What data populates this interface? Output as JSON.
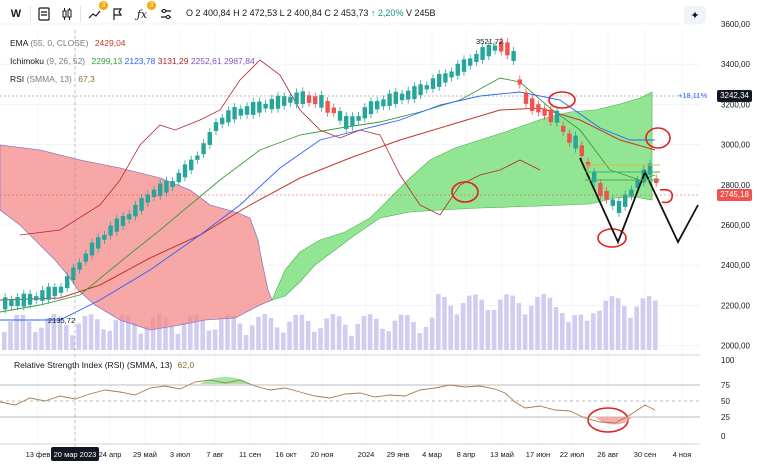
{
  "toolbar": {
    "symbol_label": "W",
    "alerts_badge": "3",
    "indicators_badge": "3"
  },
  "ohlc": {
    "open": "O 2 400,84",
    "high": "H 2 472,53",
    "low": "L 2 400,84",
    "close": "C 2 453,73",
    "change": "↑ 2,20%",
    "volume": "V 245B"
  },
  "indicators": [
    {
      "name": "EMA",
      "params": "(55, 0, CLOSE)",
      "values": [
        "2429,04"
      ],
      "colors": [
        "#c0392b"
      ]
    },
    {
      "name": "Ichimoku",
      "params": "(9, 26, 52)",
      "values": [
        "2299,13",
        "2123,78",
        "3131,29",
        "2252,61",
        "2987,84"
      ],
      "colors": [
        "#3a9b3a",
        "#2962ff",
        "#b22833",
        "#7e57c2",
        "#7e57c2"
      ]
    },
    {
      "name": "RSI",
      "params": "(SMMA, 13)",
      "values": [
        "67,3"
      ],
      "colors": [
        "#8d6e2f"
      ]
    }
  ],
  "price_axis": {
    "labels": [
      "3600,00",
      "3400,00",
      "3200,00",
      "3000,00",
      "2800,00",
      "2600,00",
      "2400,00",
      "2200,00",
      "2000,00"
    ],
    "tag_upper": "3242,34",
    "tag_lower": "2745,18",
    "pct_label": "+18,11%"
  },
  "annotations": {
    "high_label": "3521,72",
    "low_label": "2135,72"
  },
  "rsi_panel": {
    "title": "Relative Strength Index (RSI) (SMMA, 13)",
    "value": "62,0",
    "levels": [
      "100",
      "75",
      "50",
      "25",
      "0"
    ]
  },
  "time_axis": {
    "labels": [
      "13 фев",
      "20 мар 2023",
      "24 апр",
      "29 май",
      "3 июл",
      "7 авг",
      "11 сен",
      "16 окт",
      "20 ноя",
      "2024",
      "29 янв",
      "4 мар",
      "8 апр",
      "13 май",
      "17 июн",
      "22 июл",
      "26 авг",
      "30 сен",
      "4 ноя"
    ],
    "highlight": "20 мар 2023"
  },
  "colors": {
    "bull": "#26a69a",
    "bear": "#ef5350",
    "cloud_green": "#7fe07f",
    "cloud_red": "#f58a8a",
    "volume": "#c8c4ef",
    "annotation": "#e02020"
  }
}
